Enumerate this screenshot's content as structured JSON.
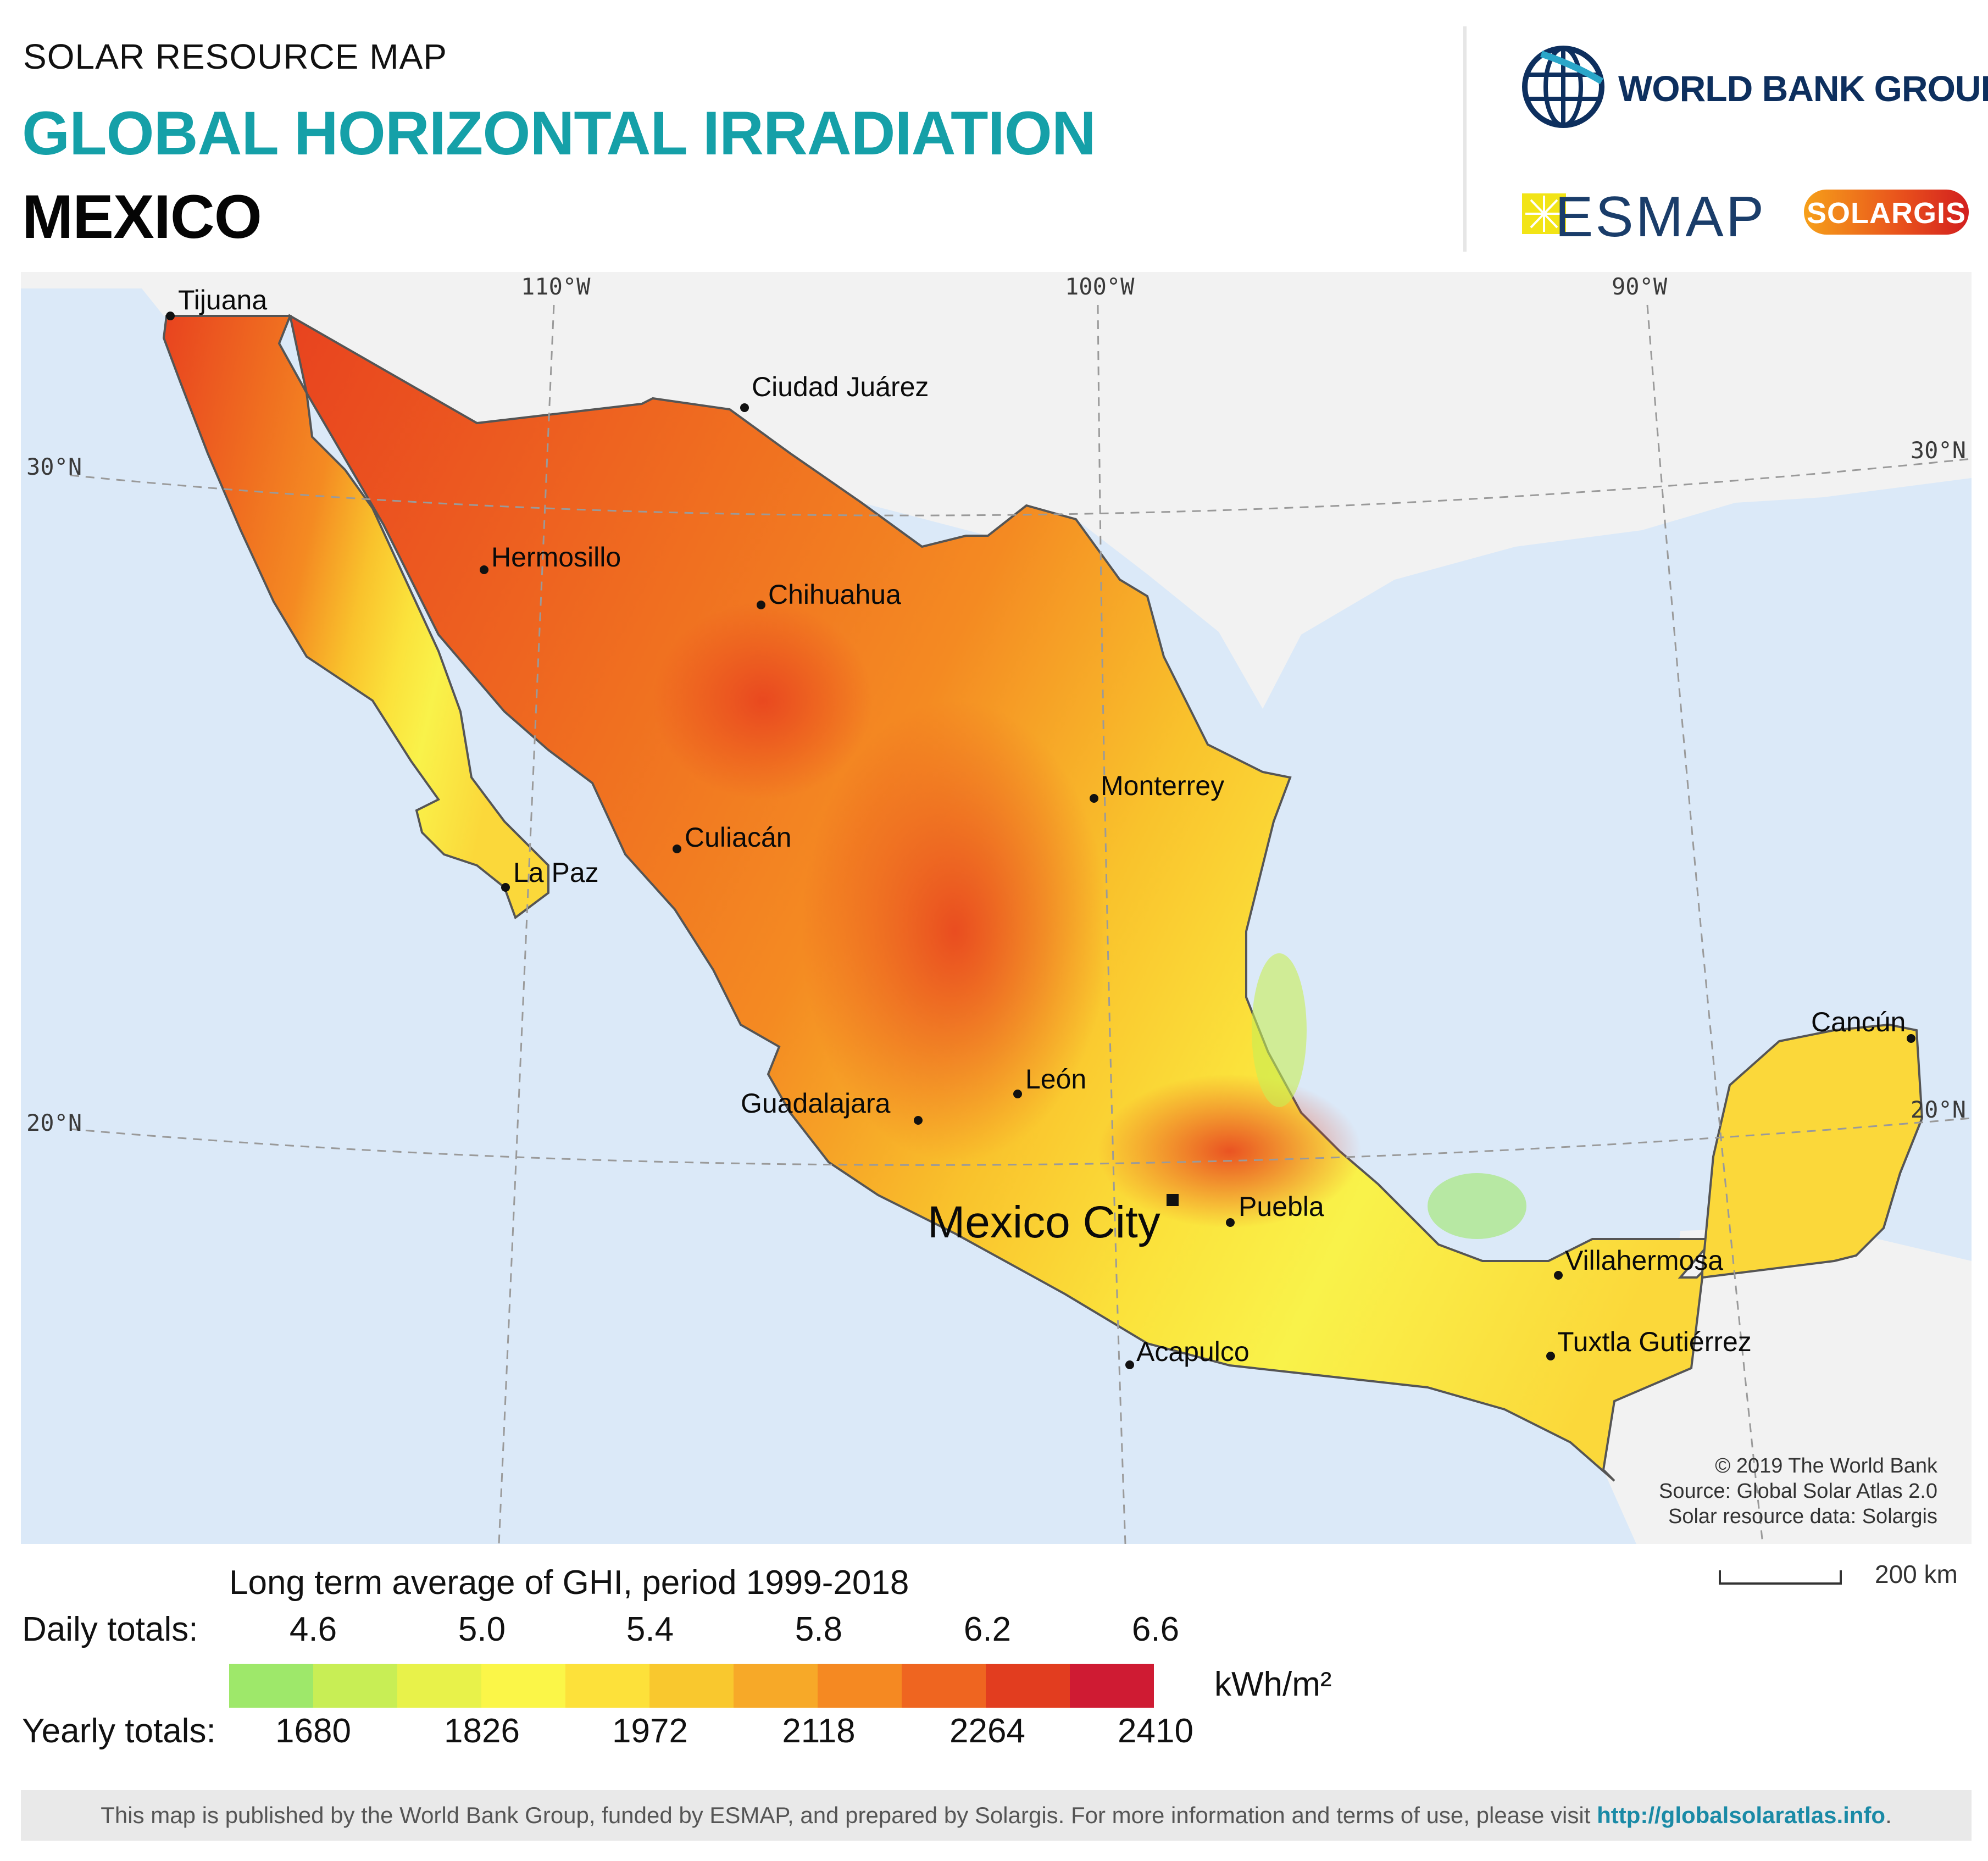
{
  "header": {
    "subtitle": "SOLAR RESOURCE MAP",
    "title": "GLOBAL HORIZONTAL IRRADIATION",
    "country": "MEXICO",
    "logos": {
      "world_bank": "WORLD BANK GROUP",
      "esmap": "ESMAP",
      "solargis": "SOLARGIS"
    }
  },
  "map": {
    "graticule": {
      "longitudes": [
        "110°W",
        "100°W",
        "90°W"
      ],
      "latitudes": [
        "30°N",
        "20°N"
      ]
    },
    "cities": [
      "Tijuana",
      "Ciudad Juárez",
      "Hermosillo",
      "Chihuahua",
      "Monterrey",
      "Culiacán",
      "La Paz",
      "Guadalajara",
      "León",
      "Mexico City",
      "Puebla",
      "Acapulco",
      "Villahermosa",
      "Tuxtla Gutiérrez",
      "Cancún"
    ],
    "credits": [
      "© 2019 The World Bank",
      "Source: Global Solar Atlas 2.0",
      "Solar resource data: Solargis"
    ],
    "colors": {
      "sea": "#dbe9f8",
      "land_outside": "#f2f2f2",
      "border": "#555555"
    }
  },
  "legend": {
    "title": "Long term average of GHI, period 1999-2018",
    "daily_label": "Daily totals:",
    "yearly_label": "Yearly totals:",
    "daily_ticks": [
      "4.6",
      "5.0",
      "5.4",
      "5.8",
      "6.2",
      "6.6"
    ],
    "yearly_ticks": [
      "1680",
      "1826",
      "1972",
      "2118",
      "2264",
      "2410"
    ],
    "unit": "kWh/m²",
    "colors": [
      "#9ee86a",
      "#c8ee55",
      "#e8f24a",
      "#fbf648",
      "#fde13a",
      "#f9c82e",
      "#f7a928",
      "#f58922",
      "#ef6520",
      "#e23d1f",
      "#cf1b33"
    ],
    "scale_bar": "200 km"
  },
  "footer": {
    "text": "This map is published by the World Bank Group, funded by ESMAP, and prepared by Solargis. For more information and terms of use, please visit ",
    "link": "http://globalsolaratlas.info",
    "end": "."
  }
}
